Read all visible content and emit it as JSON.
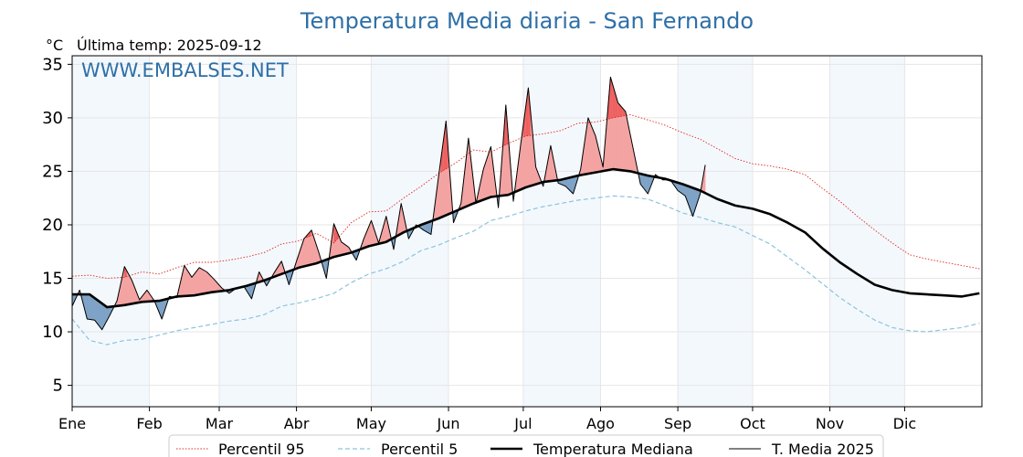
{
  "colors": {
    "title": "#2e6fa7",
    "p95": "#e0281e",
    "p5": "#8cc4dc",
    "median": "#000000",
    "current": "#000000",
    "above_fill": "#f4a3a3",
    "above_fill_strong": "#ee6060",
    "below_fill": "#7ea3c6",
    "band": "#f3f8fd",
    "grid": "#e6e6e6"
  },
  "chart_data": {
    "type": "line",
    "title": "Temperatura Media diaria - San Fernando",
    "unit": "°C",
    "subtitle": "Última temp: 2025-09-12",
    "watermark": "WWW.EMBALSES.NET",
    "ylim": [
      3,
      35.8
    ],
    "y_ticks": [
      5,
      10,
      15,
      20,
      25,
      30,
      35
    ],
    "x_ticks": [
      {
        "label": "Ene",
        "day": 1
      },
      {
        "label": "Feb",
        "day": 32
      },
      {
        "label": "Mar",
        "day": 60
      },
      {
        "label": "Abr",
        "day": 91
      },
      {
        "label": "May",
        "day": 121
      },
      {
        "label": "Jun",
        "day": 152
      },
      {
        "label": "Jul",
        "day": 182
      },
      {
        "label": "Ago",
        "day": 213
      },
      {
        "label": "Sep",
        "day": 244
      },
      {
        "label": "Oct",
        "day": 274
      },
      {
        "label": "Nov",
        "day": 305
      },
      {
        "label": "Dic",
        "day": 335
      }
    ],
    "xlim": [
      1,
      366
    ],
    "grid": true,
    "legend_position": "bottom-center",
    "series": [
      {
        "key": "p95",
        "name": "Percentil 95",
        "style": "dotted-thin",
        "x": [
          1,
          8,
          15,
          22,
          29,
          36,
          43,
          50,
          57,
          64,
          71,
          78,
          85,
          92,
          99,
          106,
          113,
          120,
          127,
          134,
          141,
          148,
          155,
          162,
          169,
          176,
          183,
          190,
          197,
          204,
          211,
          218,
          225,
          232,
          239,
          246,
          253,
          260,
          267,
          274,
          281,
          288,
          295,
          302,
          309,
          316,
          323,
          330,
          337,
          344,
          351,
          358,
          365
        ],
        "y": [
          15.2,
          15.3,
          15.0,
          15.1,
          15.6,
          15.4,
          16.0,
          16.5,
          16.5,
          16.7,
          17.0,
          17.4,
          18.2,
          18.5,
          19.2,
          18.3,
          20.2,
          21.2,
          21.3,
          22.5,
          23.6,
          24.8,
          25.8,
          27.0,
          26.8,
          27.6,
          28.3,
          28.5,
          28.8,
          29.5,
          29.6,
          30.0,
          30.3,
          29.8,
          29.3,
          28.6,
          28.0,
          27.1,
          26.2,
          25.7,
          25.5,
          25.2,
          24.7,
          23.4,
          22.2,
          20.8,
          19.5,
          18.3,
          17.2,
          16.8,
          16.5,
          16.2,
          15.9
        ]
      },
      {
        "key": "p5",
        "name": "Percentil 5",
        "style": "dashed",
        "x": [
          1,
          8,
          15,
          22,
          29,
          36,
          43,
          50,
          57,
          64,
          71,
          78,
          85,
          92,
          99,
          106,
          113,
          120,
          127,
          134,
          141,
          148,
          155,
          162,
          169,
          176,
          183,
          190,
          197,
          204,
          211,
          218,
          225,
          232,
          239,
          246,
          253,
          260,
          267,
          274,
          281,
          288,
          295,
          302,
          309,
          316,
          323,
          330,
          337,
          344,
          351,
          358,
          365
        ],
        "y": [
          11.2,
          9.2,
          8.8,
          9.2,
          9.3,
          9.7,
          10.1,
          10.4,
          10.7,
          11.0,
          11.2,
          11.6,
          12.4,
          12.7,
          13.1,
          13.6,
          14.6,
          15.4,
          15.9,
          16.6,
          17.6,
          18.1,
          18.8,
          19.4,
          20.4,
          20.8,
          21.3,
          21.7,
          22.0,
          22.3,
          22.5,
          22.7,
          22.6,
          22.4,
          21.8,
          21.1,
          20.7,
          20.2,
          19.8,
          19.0,
          18.2,
          17.0,
          15.8,
          14.5,
          13.2,
          12.1,
          11.1,
          10.4,
          10.1,
          10.0,
          10.2,
          10.4,
          10.8
        ]
      },
      {
        "key": "median",
        "name": "Temperatura Mediana",
        "style": "thick",
        "x": [
          1,
          8,
          15,
          22,
          29,
          36,
          43,
          50,
          57,
          64,
          71,
          78,
          85,
          92,
          99,
          106,
          113,
          120,
          127,
          134,
          141,
          148,
          155,
          162,
          169,
          176,
          183,
          190,
          197,
          204,
          211,
          218,
          225,
          232,
          239,
          246,
          253,
          260,
          267,
          274,
          281,
          288,
          295,
          302,
          309,
          316,
          323,
          330,
          337,
          344,
          351,
          358,
          365
        ],
        "y": [
          13.5,
          13.5,
          12.3,
          12.5,
          12.8,
          12.9,
          13.3,
          13.4,
          13.7,
          13.9,
          14.3,
          14.8,
          15.4,
          16.0,
          16.4,
          17.0,
          17.4,
          18.0,
          18.4,
          19.3,
          20.0,
          20.6,
          21.3,
          22.0,
          22.6,
          22.8,
          23.5,
          24.0,
          24.2,
          24.6,
          24.9,
          25.2,
          25.0,
          24.6,
          24.3,
          23.8,
          23.2,
          22.4,
          21.8,
          21.5,
          21.0,
          20.2,
          19.3,
          17.8,
          16.5,
          15.4,
          14.4,
          13.9,
          13.6,
          13.5,
          13.4,
          13.3,
          13.6
        ]
      },
      {
        "key": "current",
        "name": "T. Media 2025",
        "style": "thin",
        "x": [
          1,
          4,
          7,
          10,
          13,
          16,
          19,
          22,
          25,
          28,
          31,
          34,
          37,
          40,
          43,
          46,
          49,
          52,
          55,
          58,
          61,
          64,
          67,
          70,
          73,
          76,
          79,
          82,
          85,
          88,
          91,
          94,
          97,
          100,
          103,
          106,
          109,
          112,
          115,
          118,
          121,
          124,
          127,
          130,
          133,
          136,
          139,
          142,
          145,
          148,
          151,
          154,
          157,
          160,
          163,
          166,
          169,
          172,
          175,
          178,
          181,
          184,
          187,
          190,
          193,
          196,
          199,
          202,
          205,
          208,
          211,
          214,
          217,
          220,
          223,
          226,
          229,
          232,
          235,
          238,
          241,
          244,
          247,
          250,
          253,
          255
        ],
        "y": [
          12.4,
          13.9,
          11.2,
          11.1,
          10.2,
          11.5,
          12.9,
          16.1,
          14.8,
          13.0,
          13.9,
          12.9,
          11.2,
          13.3,
          13.2,
          16.2,
          15.1,
          16.0,
          15.6,
          14.9,
          14.1,
          13.6,
          14.1,
          14.2,
          13.1,
          15.6,
          14.3,
          15.5,
          16.6,
          14.4,
          16.6,
          18.7,
          19.5,
          17.4,
          15.0,
          20.1,
          18.4,
          17.9,
          16.7,
          18.7,
          20.4,
          18.3,
          20.8,
          17.7,
          22.0,
          18.7,
          20.0,
          19.5,
          19.1,
          24.5,
          29.7,
          20.2,
          22.0,
          28.1,
          22.0,
          25.2,
          27.3,
          21.6,
          31.2,
          22.2,
          27.6,
          32.8,
          25.4,
          23.6,
          27.4,
          23.9,
          23.6,
          22.9,
          25.2,
          30.0,
          28.3,
          25.4,
          33.8,
          31.4,
          30.6,
          27.2,
          23.8,
          22.9,
          24.7,
          24.2,
          24.2,
          23.2,
          22.7,
          20.8,
          22.9,
          25.6
        ]
      }
    ]
  }
}
